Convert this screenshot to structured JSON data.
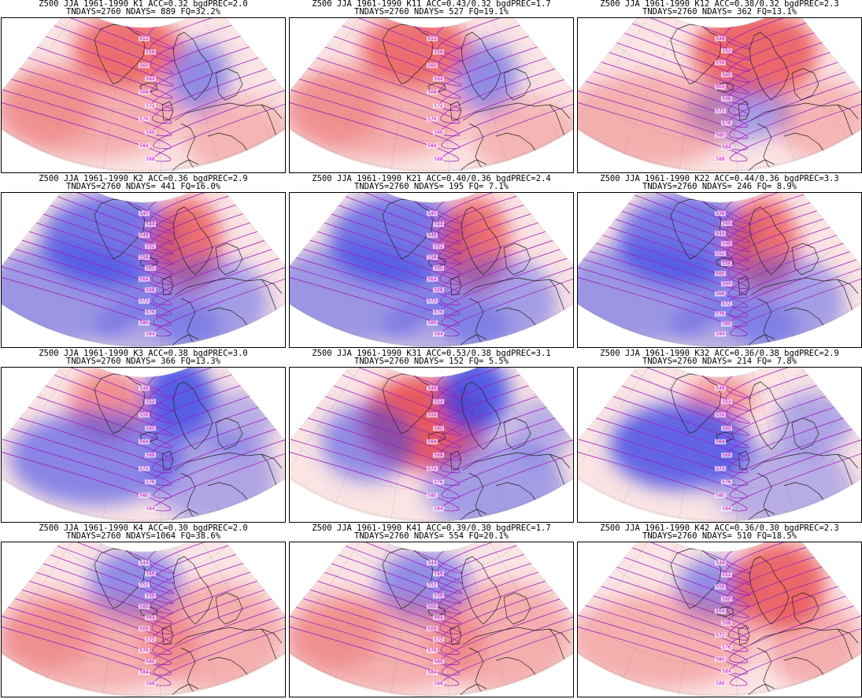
{
  "panels": [
    {
      "id": "K1",
      "row": 0,
      "col": 0,
      "title1": "Z500 JJA 1961-1990 K1 ACC=0.32 bgdPREC=2.0",
      "title2": "TNDAYS=2760 NDAYS= 889 FQ=32.2%",
      "pattern": "warm-trough",
      "colors": {
        "pos": "#e8484a",
        "neg": "#3b46e6"
      },
      "labels": [
        "552",
        "556",
        "560",
        "564",
        "568",
        "572",
        "576",
        "580",
        "584",
        "588"
      ]
    },
    {
      "id": "K11",
      "row": 0,
      "col": 1,
      "title1": "Z500 JJA 1961-1990 K11 ACC=0.43/0.32 bgdPREC=1.7",
      "title2": "TNDAYS=2760 NDAYS= 527 FQ=19.1%",
      "pattern": "warm-trough",
      "colors": {
        "pos": "#e8484a",
        "neg": "#3b46e6"
      },
      "labels": [
        "552",
        "556",
        "560",
        "564",
        "568",
        "572",
        "576",
        "580",
        "584",
        "588"
      ]
    },
    {
      "id": "K12",
      "row": 0,
      "col": 2,
      "title1": "Z500 JJA 1961-1990 K12 ACC=0.38/0.32 bgdPREC=2.3",
      "title2": "TNDAYS=2760 NDAYS= 362 FQ=13.1%",
      "pattern": "warm-east",
      "colors": {
        "pos": "#e8484a",
        "neg": "#3b46e6"
      },
      "labels": [
        "548",
        "552",
        "556",
        "560",
        "564",
        "568",
        "572",
        "576",
        "580",
        "584",
        "588"
      ]
    },
    {
      "id": "K2",
      "row": 1,
      "col": 0,
      "title1": "Z500 JJA 1961-1990 K2 ACC=0.36 bgdPREC=2.9",
      "title2": "TNDAYS=2760 NDAYS= 441 FQ=16.0%",
      "pattern": "cold-ridge",
      "colors": {
        "pos": "#e8484a",
        "neg": "#3b46e6"
      },
      "labels": [
        "540",
        "544",
        "548",
        "552",
        "556",
        "560",
        "564",
        "568",
        "572",
        "576",
        "580",
        "584"
      ]
    },
    {
      "id": "K21",
      "row": 1,
      "col": 1,
      "title1": "Z500 JJA 1961-1990 K21 ACC=0.40/0.36 bgdPREC=2.4",
      "title2": "TNDAYS=2760 NDAYS= 195 FQ= 7.1%",
      "pattern": "cold-ridge",
      "colors": {
        "pos": "#e8484a",
        "neg": "#3b46e6"
      },
      "labels": [
        "540",
        "544",
        "548",
        "552",
        "556",
        "560",
        "564",
        "568",
        "572",
        "576",
        "580",
        "584"
      ]
    },
    {
      "id": "K22",
      "row": 1,
      "col": 2,
      "title1": "Z500 JJA 1961-1990 K22 ACC=0.44/0.36 bgdPREC=3.3",
      "title2": "TNDAYS=2760 NDAYS= 246 FQ= 8.9%",
      "pattern": "cold-ridge",
      "colors": {
        "pos": "#e8484a",
        "neg": "#3b46e6"
      },
      "labels": [
        "536",
        "540",
        "544",
        "548",
        "552",
        "556",
        "560",
        "564",
        "568",
        "572",
        "576",
        "580",
        "584"
      ]
    },
    {
      "id": "K3",
      "row": 2,
      "col": 0,
      "title1": "Z500 JJA 1961-1990 K3 ACC=0.38 bgdPREC=3.0",
      "title2": "TNDAYS=2760 NDAYS= 366 FQ=13.3%",
      "pattern": "blocking",
      "colors": {
        "pos": "#e8484a",
        "neg": "#3b46e6"
      },
      "labels": [
        "548",
        "552",
        "556",
        "560",
        "564",
        "568",
        "572",
        "576",
        "580",
        "584"
      ]
    },
    {
      "id": "K31",
      "row": 2,
      "col": 1,
      "title1": "Z500 JJA 1961-1990 K31 ACC=0.53/0.38 bgdPREC=3.1",
      "title2": "TNDAYS=2760 NDAYS= 152 FQ= 5.5%",
      "pattern": "blocking-strong",
      "colors": {
        "pos": "#e8484a",
        "neg": "#3b46e6"
      },
      "labels": [
        "548",
        "552",
        "556",
        "560",
        "564",
        "568",
        "572",
        "576",
        "580",
        "584"
      ]
    },
    {
      "id": "K32",
      "row": 2,
      "col": 2,
      "title1": "Z500 JJA 1961-1990 K32 ACC=0.36/0.38 bgdPREC=2.9",
      "title2": "TNDAYS=2760 NDAYS= 214 FQ= 7.8%",
      "pattern": "blocking-weak",
      "colors": {
        "pos": "#e8484a",
        "neg": "#3b46e6"
      },
      "labels": [
        "548",
        "552",
        "556",
        "560",
        "564",
        "568",
        "572",
        "576",
        "580",
        "584"
      ]
    },
    {
      "id": "K4",
      "row": 3,
      "col": 0,
      "title1": "Z500 JJA 1961-1990 K4 ACC=0.30 bgdPREC=2.0",
      "title2": "TNDAYS=2760 NDAYS=1064 FQ=38.6%",
      "pattern": "zonal",
      "colors": {
        "pos": "#e8484a",
        "neg": "#3b46e6"
      },
      "labels": [
        "544",
        "548",
        "552",
        "556",
        "560",
        "564",
        "568",
        "572",
        "576",
        "580",
        "584",
        "588"
      ]
    },
    {
      "id": "K41",
      "row": 3,
      "col": 1,
      "title1": "Z500 JJA 1961-1990 K41 ACC=0.39/0.30 bgdPREC=1.7",
      "title2": "TNDAYS=2760 NDAYS= 554 FQ=20.1%",
      "pattern": "zonal",
      "colors": {
        "pos": "#e8484a",
        "neg": "#3b46e6"
      },
      "labels": [
        "544",
        "548",
        "552",
        "556",
        "560",
        "564",
        "568",
        "572",
        "576",
        "580",
        "584",
        "588"
      ]
    },
    {
      "id": "K42",
      "row": 3,
      "col": 2,
      "title1": "Z500 JJA 1961-1990 K42 ACC=0.36/0.30 bgdPREC=2.3",
      "title2": "TNDAYS=2760 NDAYS= 510 FQ=18.5%",
      "pattern": "zonal-east",
      "colors": {
        "pos": "#e8484a",
        "neg": "#3b46e6"
      },
      "labels": [
        "548",
        "552",
        "556",
        "560",
        "564",
        "568",
        "572",
        "576",
        "580",
        "584",
        "588"
      ]
    }
  ]
}
